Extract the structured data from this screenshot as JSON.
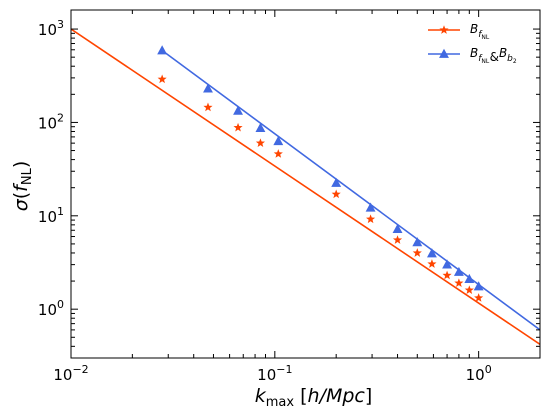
{
  "chart_data": {
    "type": "line",
    "xscale": "log",
    "yscale": "log",
    "xlim": [
      0.01,
      2.0
    ],
    "ylim": [
      0.3,
      1600
    ],
    "xlabel": "k_max [h/Mpc]",
    "ylabel": "σ(f_NL)",
    "xticks": [
      {
        "value": 0.01,
        "base": "10",
        "exp": "−2"
      },
      {
        "value": 0.1,
        "base": "10",
        "exp": "−1"
      },
      {
        "value": 1,
        "base": "10",
        "exp": "0"
      }
    ],
    "yticks": [
      {
        "value": 1,
        "base": "10",
        "exp": "0"
      },
      {
        "value": 10,
        "base": "10",
        "exp": "1"
      },
      {
        "value": 100,
        "base": "10",
        "exp": "2"
      },
      {
        "value": 1000,
        "base": "10",
        "exp": "3"
      }
    ],
    "legend_position": "top-right",
    "series": [
      {
        "name": "B_{f_NL}",
        "color": "#ff4500",
        "marker": "star",
        "line_x": [
          0.01,
          2.0
        ],
        "line_y": [
          1000,
          0.42
        ],
        "x": [
          0.028,
          0.047,
          0.066,
          0.085,
          0.104,
          0.2,
          0.295,
          0.4,
          0.5,
          0.59,
          0.7,
          0.8,
          0.9,
          1.0
        ],
        "y": [
          290,
          145,
          88,
          60,
          46,
          17,
          9.2,
          5.5,
          4.0,
          3.05,
          2.3,
          1.9,
          1.6,
          1.32
        ]
      },
      {
        "name": "B_{f_NL}&B_{b_2}",
        "color": "#4169e1",
        "marker": "triangle",
        "line_x": [
          0.028,
          2.0
        ],
        "line_y": [
          590,
          0.6
        ],
        "x": [
          0.028,
          0.047,
          0.066,
          0.085,
          0.104,
          0.2,
          0.295,
          0.4,
          0.5,
          0.59,
          0.7,
          0.8,
          0.9,
          1.0
        ],
        "y": [
          590,
          230,
          133,
          87,
          63,
          22.5,
          12.2,
          7.2,
          5.2,
          3.95,
          3.0,
          2.5,
          2.1,
          1.75
        ]
      }
    ]
  }
}
